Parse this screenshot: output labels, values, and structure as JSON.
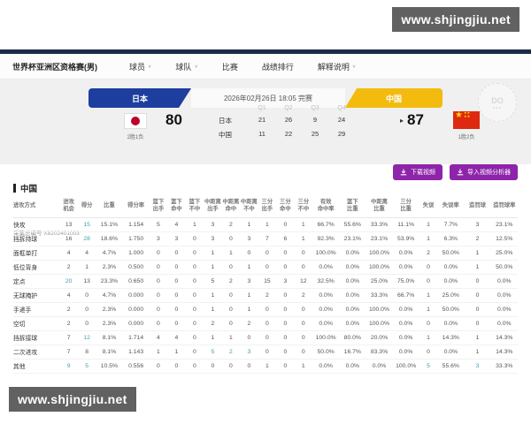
{
  "watermark": {
    "text": "www.shjingjiu.net"
  },
  "nav": {
    "title": "世界杯亚洲区资格赛(男)",
    "items": [
      {
        "label": "球员",
        "dropdown": true
      },
      {
        "label": "球队",
        "dropdown": true
      },
      {
        "label": "比赛",
        "dropdown": false
      },
      {
        "label": "战绩排行",
        "dropdown": false
      },
      {
        "label": "解释说明",
        "dropdown": true
      }
    ]
  },
  "scoreboard": {
    "datetime": "2026年02月26日 18:05 完赛",
    "home": {
      "name": "日本",
      "score": "80",
      "record": "2胜1负",
      "banner_color": "#1d3e9e"
    },
    "away": {
      "name": "中国",
      "score": "87",
      "record": "1胜2负",
      "banner_color": "#f2bb0e",
      "winner": true
    },
    "quarters": {
      "headers": [
        "Q1",
        "Q2",
        "Q3",
        "Q4"
      ],
      "rows": [
        {
          "team": "日本",
          "scores": [
            "21",
            "26",
            "9",
            "24"
          ]
        },
        {
          "team": "中国",
          "scores": [
            "11",
            "22",
            "25",
            "29"
          ]
        }
      ]
    },
    "logo_text": "DO"
  },
  "collection_id": "采集总编号 X8202401003",
  "actions": [
    {
      "label": "下载视频",
      "icon": "download-icon"
    },
    {
      "label": "导入视频分析器",
      "icon": "import-icon"
    }
  ],
  "section_title": "中国",
  "stats_table": {
    "headers": [
      "进攻方式",
      "进攻\n机会",
      "得分",
      "比重",
      "得分率",
      "篮下\n出手",
      "篮下\n命中",
      "篮下\n不中",
      "中距离\n出手",
      "中距离\n命中",
      "中距离\n不中",
      "三分\n出手",
      "三分\n命中",
      "三分\n不中",
      "有效\n命中率",
      "篮下\n比重",
      "中距离\n比重",
      "三分\n比重",
      "失误",
      "失误率",
      "造罚球",
      "造罚球率"
    ],
    "rows": [
      {
        "name": "快攻",
        "values": [
          "13",
          "15",
          "15.1%",
          "1.154",
          "5",
          "4",
          "1",
          "3",
          "2",
          "1",
          "1",
          "0",
          "1",
          "66.7%",
          "55.6%",
          "33.3%",
          "11.1%",
          "1",
          "7.7%",
          "3",
          "23.1%"
        ]
      },
      {
        "name": "挡拆持球",
        "values": [
          "16",
          "28",
          "18.6%",
          "1.750",
          "3",
          "3",
          "0",
          "3",
          "0",
          "3",
          "7",
          "6",
          "1",
          "92.3%",
          "23.1%",
          "23.1%",
          "53.9%",
          "1",
          "6.3%",
          "2",
          "12.5%"
        ]
      },
      {
        "name": "面框单打",
        "values": [
          "4",
          "4",
          "4.7%",
          "1.000",
          "0",
          "0",
          "0",
          "1",
          "1",
          "0",
          "0",
          "0",
          "0",
          "100.0%",
          "0.0%",
          "100.0%",
          "0.0%",
          "2",
          "50.0%",
          "1",
          "25.0%"
        ]
      },
      {
        "name": "低位背身",
        "values": [
          "2",
          "1",
          "2.3%",
          "0.500",
          "0",
          "0",
          "0",
          "1",
          "0",
          "1",
          "0",
          "0",
          "0",
          "0.0%",
          "0.0%",
          "100.0%",
          "0.0%",
          "0",
          "0.0%",
          "1",
          "50.0%"
        ]
      },
      {
        "name": "定点",
        "values": [
          "20",
          "13",
          "23.3%",
          "0.650",
          "0",
          "0",
          "0",
          "5",
          "2",
          "3",
          "15",
          "3",
          "12",
          "32.5%",
          "0.0%",
          "25.0%",
          "75.0%",
          "0",
          "0.0%",
          "0",
          "0.0%"
        ]
      },
      {
        "name": "无球掩护",
        "values": [
          "4",
          "0",
          "4.7%",
          "0.000",
          "0",
          "0",
          "0",
          "1",
          "0",
          "1",
          "2",
          "0",
          "2",
          "0.0%",
          "0.0%",
          "33.3%",
          "66.7%",
          "1",
          "25.0%",
          "0",
          "0.0%"
        ]
      },
      {
        "name": "手递手",
        "values": [
          "2",
          "0",
          "2.3%",
          "0.000",
          "0",
          "0",
          "0",
          "1",
          "0",
          "1",
          "0",
          "0",
          "0",
          "0.0%",
          "0.0%",
          "100.0%",
          "0.0%",
          "1",
          "50.0%",
          "0",
          "0.0%"
        ]
      },
      {
        "name": "空切",
        "values": [
          "2",
          "0",
          "2.3%",
          "0.000",
          "0",
          "0",
          "0",
          "2",
          "0",
          "2",
          "0",
          "0",
          "0",
          "0.0%",
          "0.0%",
          "100.0%",
          "0.0%",
          "0",
          "0.0%",
          "0",
          "0.0%"
        ]
      },
      {
        "name": "挡拆接球",
        "values": [
          "7",
          "12",
          "8.1%",
          "1.714",
          "4",
          "4",
          "0",
          "1",
          "1",
          "0",
          "0",
          "0",
          "0",
          "100.0%",
          "80.0%",
          "20.0%",
          "0.0%",
          "1",
          "14.3%",
          "1",
          "14.3%"
        ]
      },
      {
        "name": "二次进攻",
        "values": [
          "7",
          "8",
          "8.1%",
          "1.143",
          "1",
          "1",
          "0",
          "5",
          "2",
          "3",
          "0",
          "0",
          "0",
          "50.0%",
          "16.7%",
          "83.3%",
          "0.0%",
          "0",
          "0.0%",
          "1",
          "14.3%"
        ]
      },
      {
        "name": "其他",
        "values": [
          "9",
          "5",
          "10.5%",
          "0.556",
          "0",
          "0",
          "0",
          "0",
          "0",
          "0",
          "1",
          "0",
          "1",
          "0.0%",
          "0.0%",
          "0.0%",
          "100.0%",
          "5",
          "55.6%",
          "3",
          "33.3%"
        ]
      }
    ],
    "highlights": [
      [
        0,
        1
      ],
      [
        1,
        1
      ],
      [
        4,
        0
      ],
      [
        8,
        1
      ],
      [
        9,
        7
      ],
      [
        9,
        8
      ],
      [
        9,
        9
      ],
      [
        10,
        0
      ],
      [
        10,
        1
      ],
      [
        10,
        17
      ],
      [
        10,
        19
      ]
    ]
  },
  "colors": {
    "navy": "#1b2a47",
    "home_banner": "#1d3e9e",
    "away_banner": "#f2bb0e",
    "button_purple": "#8e24aa",
    "highlight_teal": "#3d9fae",
    "watermark_gray": "#616161"
  }
}
